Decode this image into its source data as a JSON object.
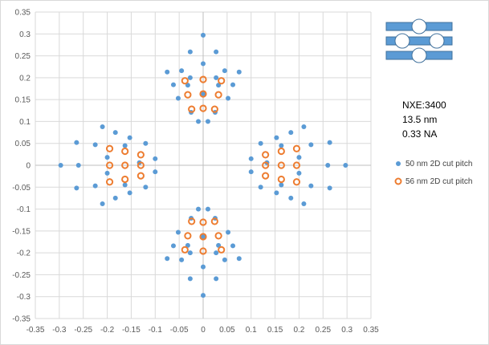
{
  "chart_data": {
    "type": "scatter",
    "title": "",
    "xlabel": "",
    "ylabel": "",
    "xlim": [
      -0.35,
      0.35
    ],
    "ylim": [
      -0.35,
      0.35
    ],
    "x_step": 0.05,
    "y_step": 0.05,
    "xticks": [
      "-0.35",
      "-0.3",
      "-0.25",
      "-0.2",
      "-0.15",
      "-0.1",
      "-0.05",
      "0",
      "0.05",
      "0.1",
      "0.15",
      "0.2",
      "0.25",
      "0.3",
      "0.35"
    ],
    "yticks": [
      "0.35",
      "0.3",
      "0.25",
      "0.2",
      "0.15",
      "0.1",
      "0.05",
      "0",
      "-0.05",
      "-0.1",
      "-0.15",
      "-0.2",
      "-0.25",
      "-0.3",
      "-0.35"
    ],
    "grid": true,
    "legend_position": "right",
    "annotations": [
      "NXE:3400",
      "13.5 nm",
      "0.33 NA"
    ],
    "series": [
      {
        "name": "50 nm 2D cut pitch",
        "marker": "filled-circle",
        "color": "#5b9bd5",
        "points": [
          [
            0,
            0.297
          ],
          [
            -0.027,
            0.259
          ],
          [
            0.027,
            0.259
          ],
          [
            0,
            0.232
          ],
          [
            -0.045,
            0.216
          ],
          [
            0.045,
            0.216
          ],
          [
            -0.027,
            0.2
          ],
          [
            0.027,
            0.2
          ],
          [
            -0.075,
            0.213
          ],
          [
            0.075,
            0.213
          ],
          [
            -0.062,
            0.184
          ],
          [
            0.062,
            0.184
          ],
          [
            -0.052,
            0.153
          ],
          [
            0.052,
            0.153
          ],
          [
            -0.025,
            0.121
          ],
          [
            0.025,
            0.121
          ],
          [
            -0.01,
            0.1
          ],
          [
            0.01,
            0.1
          ],
          [
            0,
            0.163
          ],
          [
            -0.032,
            0.183
          ],
          [
            0.032,
            0.183
          ],
          [
            0,
            -0.297
          ],
          [
            -0.027,
            -0.259
          ],
          [
            0.027,
            -0.259
          ],
          [
            0,
            -0.232
          ],
          [
            -0.045,
            -0.216
          ],
          [
            0.045,
            -0.216
          ],
          [
            -0.027,
            -0.2
          ],
          [
            0.027,
            -0.2
          ],
          [
            -0.075,
            -0.213
          ],
          [
            0.075,
            -0.213
          ],
          [
            -0.062,
            -0.184
          ],
          [
            0.062,
            -0.184
          ],
          [
            -0.052,
            -0.153
          ],
          [
            0.052,
            -0.153
          ],
          [
            -0.025,
            -0.121
          ],
          [
            0.025,
            -0.121
          ],
          [
            -0.01,
            -0.1
          ],
          [
            0.01,
            -0.1
          ],
          [
            0,
            -0.163
          ],
          [
            -0.032,
            -0.183
          ],
          [
            0.032,
            -0.183
          ],
          [
            -0.297,
            0
          ],
          [
            -0.264,
            0.052
          ],
          [
            -0.264,
            -0.052
          ],
          [
            -0.26,
            0
          ],
          [
            -0.21,
            0.088
          ],
          [
            -0.21,
            -0.088
          ],
          [
            -0.225,
            0.047
          ],
          [
            -0.225,
            -0.047
          ],
          [
            -0.183,
            0.075
          ],
          [
            -0.183,
            -0.075
          ],
          [
            -0.2,
            0.018
          ],
          [
            -0.2,
            -0.018
          ],
          [
            -0.153,
            0.063
          ],
          [
            -0.153,
            -0.063
          ],
          [
            -0.12,
            0.05
          ],
          [
            -0.12,
            -0.05
          ],
          [
            -0.1,
            0.015
          ],
          [
            -0.1,
            -0.015
          ],
          [
            -0.133,
            0.006
          ],
          [
            -0.163,
            0.045
          ],
          [
            -0.163,
            -0.045
          ],
          [
            0.297,
            0
          ],
          [
            0.264,
            0.052
          ],
          [
            0.264,
            -0.052
          ],
          [
            0.26,
            0
          ],
          [
            0.21,
            0.088
          ],
          [
            0.21,
            -0.088
          ],
          [
            0.225,
            0.047
          ],
          [
            0.225,
            -0.047
          ],
          [
            0.183,
            0.075
          ],
          [
            0.183,
            -0.075
          ],
          [
            0.2,
            0.018
          ],
          [
            0.2,
            -0.018
          ],
          [
            0.153,
            0.063
          ],
          [
            0.153,
            -0.063
          ],
          [
            0.12,
            0.05
          ],
          [
            0.12,
            -0.05
          ],
          [
            0.1,
            0.015
          ],
          [
            0.1,
            -0.015
          ],
          [
            0.133,
            0.006
          ],
          [
            0.163,
            0.045
          ],
          [
            0.163,
            -0.045
          ]
        ]
      },
      {
        "name": "56 nm 2D cut pitch",
        "marker": "hollow-circle",
        "color": "#ed7d31",
        "points": [
          [
            -0.038,
            0.193
          ],
          [
            0,
            0.196
          ],
          [
            0.038,
            0.193
          ],
          [
            -0.032,
            0.161
          ],
          [
            0,
            0.163
          ],
          [
            0.032,
            0.161
          ],
          [
            -0.024,
            0.128
          ],
          [
            0,
            0.13
          ],
          [
            0.024,
            0.128
          ],
          [
            -0.038,
            -0.193
          ],
          [
            0,
            -0.196
          ],
          [
            0.038,
            -0.193
          ],
          [
            -0.032,
            -0.161
          ],
          [
            0,
            -0.163
          ],
          [
            0.032,
            -0.161
          ],
          [
            -0.024,
            -0.128
          ],
          [
            0,
            -0.13
          ],
          [
            0.024,
            -0.128
          ],
          [
            -0.195,
            0.038
          ],
          [
            -0.195,
            0
          ],
          [
            -0.195,
            -0.038
          ],
          [
            -0.163,
            0.032
          ],
          [
            -0.163,
            0
          ],
          [
            -0.163,
            -0.032
          ],
          [
            -0.13,
            0.024
          ],
          [
            -0.13,
            0
          ],
          [
            -0.13,
            -0.024
          ],
          [
            0.195,
            0.038
          ],
          [
            0.195,
            0
          ],
          [
            0.195,
            -0.038
          ],
          [
            0.163,
            0.032
          ],
          [
            0.163,
            0
          ],
          [
            0.163,
            -0.032
          ],
          [
            0.13,
            0.024
          ],
          [
            0.13,
            0
          ],
          [
            0.13,
            -0.024
          ]
        ]
      }
    ]
  }
}
